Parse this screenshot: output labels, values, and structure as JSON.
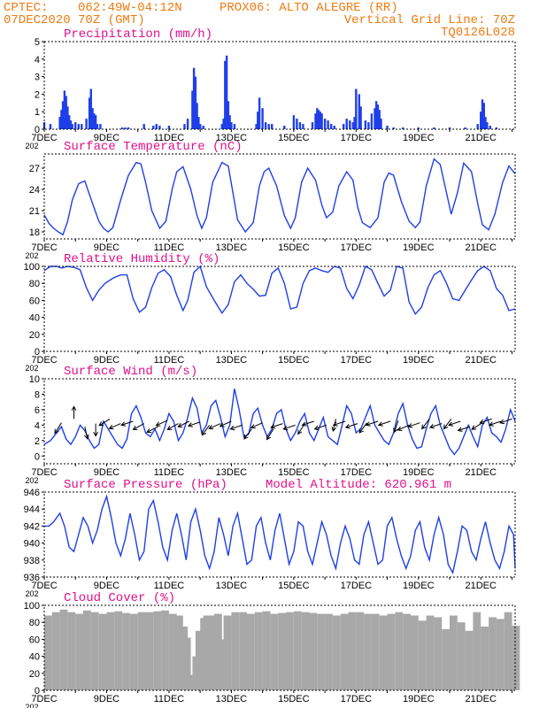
{
  "header": {
    "line1_left": "CPTEC:",
    "coords": "062:49W-04:12N",
    "station": "PROX06: ALTO ALEGRE (RR)",
    "date": "07DEC2020 70Z (GMT)",
    "grid_note": "Vertical Grid Line: 70Z",
    "model": "TQ0126L028",
    "model_altitude": "Model Altitude: 620.961 m"
  },
  "colors": {
    "header": "#f07a10",
    "title": "#e0108a",
    "line": "#1f3fe8",
    "bar": "#1f3fe8",
    "cloud": "#a8a8a8",
    "axis": "#000000"
  },
  "x_axis": {
    "tick_labels": [
      "7DEC",
      "9DEC",
      "11DEC",
      "13DEC",
      "15DEC",
      "17DEC",
      "19DEC",
      "21DEC"
    ],
    "year_stub": "202",
    "day_start": 7,
    "day_end": 22.1
  },
  "chart_data": [
    {
      "id": "precip",
      "type": "bar",
      "title": "Precipitation (mm/h)",
      "ylim": [
        0,
        5
      ],
      "yticks": [
        0,
        1,
        2,
        3,
        4,
        5
      ],
      "x": [
        7.0,
        7.2,
        7.5,
        7.55,
        7.6,
        7.65,
        7.7,
        7.75,
        7.8,
        7.85,
        7.9,
        8.0,
        8.1,
        8.2,
        8.35,
        8.45,
        8.5,
        8.55,
        8.6,
        8.65,
        8.7,
        8.8,
        9.5,
        9.6,
        9.7,
        10.2,
        10.5,
        10.6,
        10.7,
        11.0,
        11.5,
        11.6,
        11.75,
        11.8,
        11.85,
        11.9,
        11.95,
        12.0,
        12.1,
        12.7,
        12.75,
        12.8,
        12.85,
        12.9,
        12.95,
        13.0,
        13.1,
        13.8,
        13.85,
        13.9,
        14.0,
        14.1,
        14.2,
        14.3,
        14.7,
        15.0,
        15.1,
        15.2,
        15.3,
        15.6,
        15.7,
        15.75,
        15.8,
        15.85,
        15.9,
        16.0,
        16.1,
        16.2,
        16.3,
        16.6,
        16.7,
        16.8,
        16.9,
        16.95,
        17.0,
        17.1,
        17.15,
        17.3,
        17.4,
        17.5,
        17.6,
        17.65,
        17.7,
        17.75,
        17.8,
        18.0,
        18.2,
        18.5,
        19.0,
        19.5,
        20.0,
        20.5,
        20.9,
        21.0,
        21.05,
        21.1,
        21.15,
        21.2,
        21.3,
        21.5
      ],
      "values": [
        0.4,
        0.3,
        0.7,
        1.1,
        1.6,
        2.2,
        1.9,
        1.3,
        0.8,
        0.5,
        0.3,
        0.4,
        0.3,
        0.3,
        0.6,
        1.8,
        2.3,
        1.2,
        0.9,
        0.8,
        0.3,
        0.3,
        0.1,
        0.1,
        0.1,
        0.3,
        0.2,
        0.3,
        0.2,
        0.2,
        0.3,
        0.6,
        2.2,
        3.5,
        3.0,
        1.5,
        0.7,
        0.3,
        0.2,
        0.3,
        0.6,
        3.9,
        4.2,
        1.6,
        0.8,
        0.4,
        0.3,
        0.3,
        1.0,
        1.8,
        1.2,
        0.4,
        0.3,
        0.3,
        0.2,
        0.8,
        0.6,
        0.4,
        0.3,
        0.4,
        0.9,
        1.2,
        1.1,
        1.0,
        0.9,
        0.6,
        0.5,
        0.3,
        0.2,
        0.3,
        0.6,
        0.5,
        0.4,
        0.7,
        2.3,
        2.0,
        1.3,
        0.5,
        0.4,
        0.9,
        1.2,
        1.6,
        1.4,
        1.1,
        0.6,
        0.2,
        0.1,
        0.1,
        0.1,
        0.1,
        0.1,
        0.1,
        0.3,
        1.0,
        1.7,
        1.5,
        0.7,
        0.4,
        0.2,
        0.1
      ]
    },
    {
      "id": "temp",
      "type": "line",
      "title": "Surface Temperature (nC)",
      "ylim": [
        17,
        29
      ],
      "yticks": [
        18,
        21,
        24,
        27
      ],
      "x": [
        7.0,
        7.15,
        7.3,
        7.45,
        7.6,
        7.75,
        7.9,
        8.1,
        8.3,
        8.55,
        8.75,
        8.9,
        9.05,
        9.2,
        9.45,
        9.7,
        9.95,
        10.1,
        10.25,
        10.45,
        10.7,
        10.9,
        11.1,
        11.25,
        11.45,
        11.7,
        11.9,
        12.05,
        12.2,
        12.4,
        12.7,
        12.9,
        13.05,
        13.2,
        13.45,
        13.7,
        13.9,
        14.05,
        14.2,
        14.45,
        14.7,
        14.9,
        15.05,
        15.25,
        15.45,
        15.7,
        15.9,
        16.05,
        16.25,
        16.45,
        16.7,
        16.9,
        17.05,
        17.2,
        17.45,
        17.7,
        17.9,
        18.05,
        18.2,
        18.45,
        18.7,
        18.9,
        19.05,
        19.25,
        19.5,
        19.7,
        19.9,
        20.05,
        20.25,
        20.45,
        20.7,
        20.9,
        21.05,
        21.25,
        21.45,
        21.7,
        21.9,
        22.1
      ],
      "values": [
        20.4,
        19.2,
        18.5,
        18.0,
        17.6,
        19.5,
        22.5,
        24.8,
        25.2,
        22.0,
        19.5,
        18.5,
        18.0,
        18.6,
        22.5,
        26.0,
        27.8,
        27.6,
        25.0,
        21.0,
        18.5,
        19.5,
        24.0,
        26.5,
        27.2,
        24.0,
        20.3,
        18.5,
        20.0,
        25.0,
        27.8,
        27.3,
        23.5,
        19.7,
        18.0,
        19.3,
        24.5,
        26.5,
        27.0,
        24.5,
        20.3,
        18.5,
        20.0,
        25.0,
        27.0,
        25.3,
        21.8,
        20.0,
        20.8,
        24.5,
        26.5,
        25.3,
        21.5,
        19.3,
        18.6,
        20.0,
        25.0,
        26.3,
        26.0,
        22.3,
        19.5,
        18.6,
        19.4,
        24.5,
        28.3,
        27.5,
        23.5,
        20.5,
        23.5,
        27.7,
        26.5,
        22.0,
        19.0,
        18.3,
        20.5,
        25.0,
        27.3,
        26.2
      ]
    },
    {
      "id": "rh",
      "type": "line",
      "title": "Relative Humidity (%)",
      "ylim": [
        0,
        100
      ],
      "yticks": [
        0,
        20,
        40,
        60,
        80,
        100
      ],
      "x": [
        7.0,
        7.2,
        7.4,
        7.55,
        7.75,
        7.95,
        8.15,
        8.35,
        8.55,
        8.75,
        8.95,
        9.2,
        9.45,
        9.65,
        9.85,
        10.05,
        10.25,
        10.45,
        10.65,
        10.85,
        11.05,
        11.25,
        11.45,
        11.6,
        11.8,
        12.0,
        12.2,
        12.45,
        12.7,
        12.9,
        13.1,
        13.3,
        13.5,
        13.7,
        13.9,
        14.1,
        14.3,
        14.5,
        14.7,
        14.9,
        15.1,
        15.3,
        15.5,
        15.7,
        15.9,
        16.1,
        16.3,
        16.5,
        16.7,
        16.9,
        17.1,
        17.3,
        17.5,
        17.7,
        17.9,
        18.1,
        18.3,
        18.5,
        18.7,
        18.9,
        19.1,
        19.3,
        19.5,
        19.7,
        19.9,
        20.1,
        20.3,
        20.5,
        20.7,
        20.9,
        21.1,
        21.3,
        21.5,
        21.7,
        21.9,
        22.1
      ],
      "values": [
        95,
        100,
        100,
        98,
        100,
        99,
        96,
        75,
        60,
        72,
        80,
        86,
        90,
        90,
        62,
        46,
        52,
        75,
        92,
        96,
        88,
        66,
        48,
        60,
        93,
        100,
        76,
        60,
        45,
        55,
        82,
        90,
        80,
        73,
        65,
        66,
        92,
        98,
        80,
        50,
        52,
        80,
        95,
        98,
        95,
        93,
        100,
        98,
        74,
        62,
        78,
        100,
        96,
        80,
        65,
        72,
        100,
        98,
        58,
        44,
        52,
        75,
        90,
        95,
        80,
        62,
        60,
        72,
        84,
        95,
        100,
        95,
        74,
        66,
        48,
        50
      ]
    },
    {
      "id": "wind",
      "type": "line",
      "title": "Surface Wind (m/s)",
      "ylim": [
        -1,
        10
      ],
      "yticks": [
        0,
        2,
        4,
        6,
        8,
        10
      ],
      "x": [
        7.0,
        7.2,
        7.4,
        7.55,
        7.7,
        7.85,
        8.0,
        8.15,
        8.3,
        8.45,
        8.6,
        8.75,
        8.9,
        9.05,
        9.2,
        9.35,
        9.5,
        9.65,
        9.8,
        9.95,
        10.1,
        10.25,
        10.4,
        10.55,
        10.7,
        10.85,
        11.0,
        11.15,
        11.3,
        11.45,
        11.6,
        11.75,
        11.9,
        12.05,
        12.2,
        12.35,
        12.5,
        12.65,
        12.8,
        12.95,
        13.1,
        13.25,
        13.4,
        13.55,
        13.7,
        13.85,
        14.0,
        14.15,
        14.3,
        14.45,
        14.6,
        14.75,
        14.9,
        15.05,
        15.2,
        15.35,
        15.5,
        15.65,
        15.8,
        15.95,
        16.1,
        16.25,
        16.4,
        16.55,
        16.7,
        16.85,
        17.0,
        17.15,
        17.3,
        17.45,
        17.6,
        17.75,
        17.9,
        18.05,
        18.2,
        18.35,
        18.5,
        18.65,
        18.8,
        18.95,
        19.1,
        19.25,
        19.4,
        19.55,
        19.7,
        19.85,
        20.0,
        20.15,
        20.3,
        20.45,
        20.6,
        20.75,
        20.9,
        21.05,
        21.2,
        21.35,
        21.5,
        21.65,
        21.8,
        21.95,
        22.1
      ],
      "values": [
        1.5,
        2.0,
        3.0,
        3.8,
        2.2,
        1.5,
        2.5,
        4.0,
        3.3,
        2.0,
        1.0,
        1.5,
        4.5,
        3.5,
        2.5,
        1.5,
        1.0,
        2.2,
        5.5,
        6.5,
        5.0,
        3.0,
        2.5,
        3.5,
        2.0,
        3.5,
        5.5,
        4.5,
        2.0,
        3.0,
        5.0,
        7.5,
        6.2,
        3.0,
        4.0,
        6.5,
        7.2,
        5.0,
        2.5,
        4.0,
        8.7,
        6.0,
        2.5,
        2.8,
        5.5,
        6.2,
        4.0,
        2.5,
        3.5,
        5.5,
        6.0,
        3.5,
        2.0,
        3.0,
        4.5,
        5.5,
        3.0,
        2.0,
        3.5,
        5.0,
        2.5,
        2.0,
        1.5,
        4.0,
        6.5,
        5.5,
        3.0,
        3.5,
        5.0,
        6.5,
        4.0,
        3.0,
        2.0,
        1.5,
        3.0,
        5.5,
        6.8,
        4.0,
        2.2,
        1.0,
        1.2,
        3.5,
        5.5,
        6.5,
        4.0,
        2.5,
        1.0,
        0.2,
        1.0,
        2.5,
        4.0,
        2.5,
        1.2,
        4.0,
        5.0,
        3.0,
        2.5,
        1.8,
        3.5,
        6.0,
        4.5
      ]
    },
    {
      "id": "pressure",
      "type": "line",
      "title": "Surface Pressure (hPa)",
      "ylim": [
        936,
        946
      ],
      "yticks": [
        936,
        938,
        940,
        942,
        944,
        946
      ],
      "x": [
        7.0,
        7.15,
        7.3,
        7.5,
        7.65,
        7.8,
        7.95,
        8.1,
        8.25,
        8.4,
        8.55,
        8.7,
        8.85,
        9.0,
        9.15,
        9.3,
        9.45,
        9.6,
        9.75,
        9.9,
        10.05,
        10.2,
        10.35,
        10.5,
        10.65,
        10.8,
        10.95,
        11.1,
        11.25,
        11.4,
        11.55,
        11.7,
        11.85,
        12.0,
        12.15,
        12.3,
        12.45,
        12.6,
        12.75,
        12.9,
        13.05,
        13.2,
        13.35,
        13.5,
        13.65,
        13.8,
        13.95,
        14.1,
        14.25,
        14.4,
        14.55,
        14.7,
        14.85,
        15.0,
        15.15,
        15.3,
        15.45,
        15.6,
        15.75,
        15.9,
        16.05,
        16.2,
        16.35,
        16.5,
        16.65,
        16.8,
        16.95,
        17.1,
        17.25,
        17.4,
        17.55,
        17.7,
        17.85,
        18.0,
        18.15,
        18.3,
        18.45,
        18.6,
        18.75,
        18.9,
        19.05,
        19.2,
        19.35,
        19.5,
        19.65,
        19.8,
        19.95,
        20.1,
        20.25,
        20.4,
        20.55,
        20.7,
        20.85,
        21.0,
        21.15,
        21.3,
        21.45,
        21.6,
        21.75,
        21.9,
        22.05,
        22.1
      ],
      "values": [
        942.0,
        942.0,
        942.5,
        943.5,
        942.0,
        939.5,
        939.0,
        941.0,
        943.0,
        942.0,
        940.0,
        941.5,
        944.0,
        945.5,
        943.0,
        940.0,
        938.5,
        940.5,
        943.5,
        941.0,
        938.0,
        939.0,
        944.0,
        945.0,
        942.5,
        939.5,
        938.0,
        941.5,
        943.5,
        941.0,
        938.0,
        942.5,
        944.0,
        941.5,
        938.5,
        937.0,
        939.0,
        943.0,
        941.0,
        938.5,
        942.0,
        943.5,
        940.5,
        937.5,
        938.0,
        942.0,
        943.0,
        940.0,
        938.0,
        941.5,
        943.5,
        940.5,
        937.5,
        939.0,
        942.5,
        942.0,
        939.0,
        937.5,
        940.0,
        942.5,
        941.0,
        938.5,
        937.0,
        940.0,
        942.0,
        940.5,
        938.0,
        937.5,
        941.0,
        942.5,
        940.0,
        937.5,
        938.0,
        942.0,
        943.0,
        940.5,
        938.5,
        937.0,
        938.5,
        941.5,
        942.5,
        939.5,
        938.0,
        941.0,
        943.0,
        941.0,
        937.5,
        936.5,
        939.0,
        942.0,
        941.5,
        939.0,
        938.0,
        940.5,
        942.5,
        940.0,
        938.0,
        937.0,
        939.0,
        942.0,
        941.0,
        937.0
      ]
    },
    {
      "id": "cloud",
      "type": "bar",
      "title": "Cloud Cover (%)",
      "ylim": [
        0,
        100
      ],
      "yticks": [
        0,
        20,
        40,
        60,
        80,
        100
      ],
      "x": [
        7.0,
        7.25,
        7.5,
        7.75,
        8.0,
        8.25,
        8.5,
        8.75,
        9.0,
        9.25,
        9.5,
        9.75,
        10.0,
        10.25,
        10.5,
        10.75,
        11.0,
        11.2,
        11.35,
        11.45,
        11.55,
        11.65,
        11.75,
        11.85,
        12.0,
        12.1,
        12.2,
        12.25,
        12.35,
        12.45,
        12.55,
        12.65,
        12.75,
        13.0,
        13.25,
        13.5,
        13.75,
        14.0,
        14.25,
        14.5,
        14.75,
        15.0,
        15.25,
        15.5,
        15.75,
        16.0,
        16.25,
        16.5,
        16.75,
        17.0,
        17.25,
        17.5,
        17.75,
        18.0,
        18.25,
        18.5,
        18.75,
        19.0,
        19.25,
        19.5,
        19.75,
        20.0,
        20.25,
        20.5,
        20.75,
        21.0,
        21.25,
        21.5,
        21.75,
        22.0
      ],
      "values": [
        88,
        92,
        95,
        92,
        90,
        94,
        92,
        90,
        92,
        93,
        91,
        90,
        92,
        92,
        93,
        94,
        90,
        88,
        75,
        62,
        18,
        5,
        40,
        70,
        85,
        88,
        88,
        8,
        30,
        90,
        2,
        60,
        88,
        92,
        92,
        90,
        92,
        93,
        90,
        91,
        92,
        93,
        92,
        91,
        90,
        90,
        88,
        90,
        92,
        92,
        90,
        90,
        88,
        90,
        92,
        90,
        88,
        82,
        88,
        86,
        72,
        88,
        80,
        70,
        92,
        75,
        86,
        84,
        92,
        76
      ]
    }
  ],
  "wind_arrows": {
    "x": [
      7.55,
      7.95,
      8.3,
      8.65,
      9.1,
      9.45,
      9.85,
      10.2,
      10.65,
      10.95,
      11.3,
      11.65,
      12.0,
      12.3,
      12.65,
      13.0,
      13.35,
      13.65,
      14.0,
      14.35,
      14.65,
      15.05,
      15.35,
      15.65,
      16.05,
      16.35,
      16.65,
      17.05,
      17.35,
      17.7,
      18.1,
      18.35,
      18.7,
      19.05,
      19.35,
      19.75,
      20.05,
      20.35,
      20.65,
      21.05,
      21.35,
      21.65,
      22.0
    ],
    "u": [
      -0.5,
      0,
      0.2,
      0,
      -0.8,
      -0.9,
      -0.9,
      -0.9,
      -0.8,
      -0.9,
      -0.9,
      -0.8,
      -0.9,
      -0.6,
      -0.9,
      -0.9,
      -0.9,
      -0.6,
      -0.9,
      -0.5,
      -0.9,
      -0.9,
      -0.5,
      -0.9,
      -0.9,
      -0.2,
      -0.9,
      -0.9,
      -0.6,
      -0.9,
      -0.9,
      -0.3,
      -0.9,
      -0.9,
      -0.6,
      -0.9,
      -0.6,
      -0.9,
      -0.9,
      -0.8,
      -0.9,
      -0.9,
      -0.9
    ],
    "v": [
      -0.8,
      1,
      -0.9,
      -0.6,
      -0.5,
      -0.4,
      -0.3,
      -0.5,
      -0.4,
      -0.4,
      -0.5,
      -0.4,
      -0.3,
      -0.8,
      -0.4,
      -0.4,
      -0.3,
      -0.8,
      -0.4,
      -0.8,
      -0.3,
      -0.3,
      -0.8,
      -0.3,
      -0.3,
      -0.9,
      -0.3,
      -0.3,
      -0.8,
      -0.3,
      -0.3,
      -0.9,
      -0.4,
      -0.3,
      -0.8,
      -0.3,
      -0.8,
      -0.3,
      -0.3,
      -0.5,
      -0.3,
      -0.3,
      -0.3
    ],
    "y": [
      4.3,
      4.8,
      3.8,
      4.2,
      4.8,
      4.2,
      4.5,
      4.2,
      3.8,
      4.6,
      4.2,
      4.5,
      4.4,
      4.0,
      4.2,
      4.5,
      4.0,
      3.5,
      4.3,
      3.5,
      4.2,
      4.0,
      4.2,
      4.5,
      4.0,
      4.8,
      4.5,
      4.2,
      4.3,
      4.5,
      4.5,
      4.6,
      4.0,
      4.3,
      4.8,
      4.2,
      4.8,
      4.5,
      3.8,
      4.3,
      4.8,
      4.5,
      4.8
    ]
  }
}
